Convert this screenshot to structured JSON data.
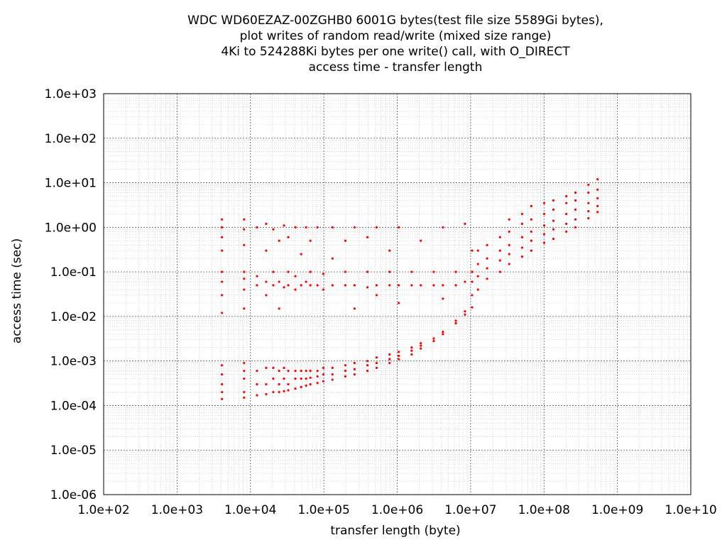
{
  "chart_data": {
    "type": "scatter",
    "title_lines": [
      "WDC WD60EZAZ-00ZGHB0 6001G bytes(test file size 5589Gi bytes),",
      "plot writes of random read/write (mixed size range)",
      "4Ki to 524288Ki bytes per one write() call, with O_DIRECT",
      "access time - transfer length"
    ],
    "xlabel": "transfer length (byte)",
    "ylabel": "access time (sec)",
    "xscale": "log",
    "yscale": "log",
    "xlim": [
      100,
      10000000000
    ],
    "ylim": [
      1e-06,
      1000
    ],
    "grid": true,
    "x_ticks": [
      {
        "value": 100,
        "label": "1.0e+02"
      },
      {
        "value": 1000,
        "label": "1.0e+03"
      },
      {
        "value": 10000,
        "label": "1.0e+04"
      },
      {
        "value": 100000,
        "label": "1.0e+05"
      },
      {
        "value": 1000000,
        "label": "1.0e+06"
      },
      {
        "value": 10000000,
        "label": "1.0e+07"
      },
      {
        "value": 100000000,
        "label": "1.0e+08"
      },
      {
        "value": 1000000000,
        "label": "1.0e+09"
      },
      {
        "value": 10000000000,
        "label": "1.0e+10"
      }
    ],
    "y_ticks": [
      {
        "value": 1e-06,
        "label": "1.0e-06"
      },
      {
        "value": 1e-05,
        "label": "1.0e-05"
      },
      {
        "value": 0.0001,
        "label": "1.0e-04"
      },
      {
        "value": 0.001,
        "label": "1.0e-03"
      },
      {
        "value": 0.01,
        "label": "1.0e-02"
      },
      {
        "value": 0.1,
        "label": "1.0e-01"
      },
      {
        "value": 1,
        "label": "1.0e+00"
      },
      {
        "value": 10,
        "label": "1.0e+01"
      },
      {
        "value": 100,
        "label": "1.0e+02"
      },
      {
        "value": 1000,
        "label": "1.0e+03"
      }
    ],
    "series": [
      {
        "color": "#ff0000",
        "points": [
          [
            4096,
            0.00014
          ],
          [
            4096,
            0.0002
          ],
          [
            4096,
            0.0003
          ],
          [
            4096,
            0.0005
          ],
          [
            4096,
            0.0008
          ],
          [
            4096,
            0.012
          ],
          [
            4096,
            0.03
          ],
          [
            4096,
            0.06
          ],
          [
            4096,
            0.1
          ],
          [
            4096,
            0.3
          ],
          [
            4096,
            0.6
          ],
          [
            4096,
            1.0
          ],
          [
            4096,
            1.5
          ],
          [
            8192,
            0.00015
          ],
          [
            8192,
            0.0002
          ],
          [
            8192,
            0.0004
          ],
          [
            8192,
            0.0006
          ],
          [
            8192,
            0.0009
          ],
          [
            8192,
            0.015
          ],
          [
            8192,
            0.04
          ],
          [
            8192,
            0.07
          ],
          [
            8192,
            0.1
          ],
          [
            8192,
            0.4
          ],
          [
            8192,
            0.9
          ],
          [
            8192,
            1.5
          ],
          [
            12288,
            0.00017
          ],
          [
            12288,
            0.0003
          ],
          [
            12288,
            0.0006
          ],
          [
            12288,
            0.05
          ],
          [
            12288,
            0.08
          ],
          [
            12288,
            1.0
          ],
          [
            16384,
            0.00018
          ],
          [
            16384,
            0.0003
          ],
          [
            16384,
            0.0007
          ],
          [
            16384,
            0.03
          ],
          [
            16384,
            0.06
          ],
          [
            16384,
            0.3
          ],
          [
            16384,
            1.2
          ],
          [
            20480,
            0.0002
          ],
          [
            20480,
            0.0004
          ],
          [
            20480,
            0.0007
          ],
          [
            20480,
            0.05
          ],
          [
            20480,
            0.1
          ],
          [
            20480,
            0.9
          ],
          [
            24576,
            0.0002
          ],
          [
            24576,
            0.0003
          ],
          [
            24576,
            0.0006
          ],
          [
            24576,
            0.015
          ],
          [
            24576,
            0.06
          ],
          [
            24576,
            0.5
          ],
          [
            28672,
            0.00021
          ],
          [
            28672,
            0.0004
          ],
          [
            28672,
            0.0007
          ],
          [
            28672,
            0.045
          ],
          [
            28672,
            1.1
          ],
          [
            32768,
            0.00022
          ],
          [
            32768,
            0.0003
          ],
          [
            32768,
            0.0006
          ],
          [
            32768,
            0.05
          ],
          [
            32768,
            0.1
          ],
          [
            32768,
            0.6
          ],
          [
            40960,
            0.00024
          ],
          [
            40960,
            0.0004
          ],
          [
            40960,
            0.0006
          ],
          [
            40960,
            0.04
          ],
          [
            40960,
            0.08
          ],
          [
            40960,
            1.0
          ],
          [
            49152,
            0.00026
          ],
          [
            49152,
            0.0004
          ],
          [
            49152,
            0.0006
          ],
          [
            49152,
            0.05
          ],
          [
            49152,
            0.25
          ],
          [
            57344,
            0.00028
          ],
          [
            57344,
            0.0004
          ],
          [
            57344,
            0.0006
          ],
          [
            57344,
            0.06
          ],
          [
            57344,
            1.0
          ],
          [
            65536,
            0.0003
          ],
          [
            65536,
            0.00042
          ],
          [
            65536,
            0.0006
          ],
          [
            65536,
            0.05
          ],
          [
            65536,
            0.1
          ],
          [
            65536,
            0.5
          ],
          [
            81920,
            0.00032
          ],
          [
            81920,
            0.00045
          ],
          [
            81920,
            0.0006
          ],
          [
            81920,
            0.05
          ],
          [
            81920,
            1.0
          ],
          [
            98304,
            0.00035
          ],
          [
            98304,
            0.0005
          ],
          [
            98304,
            0.0007
          ],
          [
            98304,
            0.04
          ],
          [
            98304,
            0.09
          ],
          [
            131072,
            0.00038
          ],
          [
            131072,
            0.0005
          ],
          [
            131072,
            0.0007
          ],
          [
            131072,
            0.05
          ],
          [
            131072,
            0.2
          ],
          [
            131072,
            1.0
          ],
          [
            196608,
            0.00045
          ],
          [
            196608,
            0.0006
          ],
          [
            196608,
            0.0008
          ],
          [
            196608,
            0.05
          ],
          [
            196608,
            0.1
          ],
          [
            196608,
            0.5
          ],
          [
            262144,
            0.0005
          ],
          [
            262144,
            0.00065
          ],
          [
            262144,
            0.0009
          ],
          [
            262144,
            0.05
          ],
          [
            262144,
            0.015
          ],
          [
            262144,
            1.0
          ],
          [
            393216,
            0.0006
          ],
          [
            393216,
            0.0008
          ],
          [
            393216,
            0.001
          ],
          [
            393216,
            0.045
          ],
          [
            393216,
            0.1
          ],
          [
            393216,
            0.6
          ],
          [
            524288,
            0.0007
          ],
          [
            524288,
            0.0009
          ],
          [
            524288,
            0.0012
          ],
          [
            524288,
            0.05
          ],
          [
            524288,
            0.03
          ],
          [
            524288,
            1.0
          ],
          [
            786432,
            0.0009
          ],
          [
            786432,
            0.0011
          ],
          [
            786432,
            0.0014
          ],
          [
            786432,
            0.05
          ],
          [
            786432,
            0.1
          ],
          [
            786432,
            0.3
          ],
          [
            1048576,
            0.0011
          ],
          [
            1048576,
            0.0013
          ],
          [
            1048576,
            0.0016
          ],
          [
            1048576,
            0.05
          ],
          [
            1048576,
            0.02
          ],
          [
            1048576,
            1.0
          ],
          [
            1572864,
            0.0014
          ],
          [
            1572864,
            0.0017
          ],
          [
            1572864,
            0.002
          ],
          [
            1572864,
            0.05
          ],
          [
            1572864,
            0.1
          ],
          [
            2097152,
            0.0019
          ],
          [
            2097152,
            0.0022
          ],
          [
            2097152,
            0.0025
          ],
          [
            2097152,
            0.05
          ],
          [
            2097152,
            0.5
          ],
          [
            3145728,
            0.0028
          ],
          [
            3145728,
            0.0032
          ],
          [
            3145728,
            0.05
          ],
          [
            3145728,
            0.1
          ],
          [
            4194304,
            0.004
          ],
          [
            4194304,
            0.0045
          ],
          [
            4194304,
            0.05
          ],
          [
            4194304,
            0.025
          ],
          [
            4194304,
            1.0
          ],
          [
            6291456,
            0.007
          ],
          [
            6291456,
            0.008
          ],
          [
            6291456,
            0.05
          ],
          [
            6291456,
            0.1
          ],
          [
            8388608,
            0.011
          ],
          [
            8388608,
            0.013
          ],
          [
            8388608,
            0.06
          ],
          [
            8388608,
            1.2
          ],
          [
            10485760,
            0.016
          ],
          [
            10485760,
            0.03
          ],
          [
            10485760,
            0.06
          ],
          [
            10485760,
            0.1
          ],
          [
            10485760,
            0.3
          ],
          [
            12582912,
            0.04
          ],
          [
            12582912,
            0.08
          ],
          [
            12582912,
            0.15
          ],
          [
            12582912,
            0.3
          ],
          [
            16777216,
            0.07
          ],
          [
            16777216,
            0.12
          ],
          [
            16777216,
            0.2
          ],
          [
            16777216,
            0.4
          ],
          [
            25165824,
            0.1
          ],
          [
            25165824,
            0.18
          ],
          [
            25165824,
            0.3
          ],
          [
            25165824,
            0.6
          ],
          [
            33554432,
            0.15
          ],
          [
            33554432,
            0.25
          ],
          [
            33554432,
            0.4
          ],
          [
            33554432,
            0.8
          ],
          [
            33554432,
            1.5
          ],
          [
            50331648,
            0.22
          ],
          [
            50331648,
            0.35
          ],
          [
            50331648,
            0.6
          ],
          [
            50331648,
            1.2
          ],
          [
            50331648,
            2.0
          ],
          [
            67108864,
            0.3
          ],
          [
            67108864,
            0.5
          ],
          [
            67108864,
            0.8
          ],
          [
            67108864,
            1.5
          ],
          [
            67108864,
            3.0
          ],
          [
            100663296,
            0.45
          ],
          [
            100663296,
            0.7
          ],
          [
            100663296,
            1.1
          ],
          [
            100663296,
            2.0
          ],
          [
            100663296,
            3.5
          ],
          [
            134217728,
            0.55
          ],
          [
            134217728,
            0.9
          ],
          [
            134217728,
            1.4
          ],
          [
            134217728,
            2.5
          ],
          [
            134217728,
            4.0
          ],
          [
            201326592,
            0.8
          ],
          [
            201326592,
            1.2
          ],
          [
            201326592,
            2.0
          ],
          [
            201326592,
            3.5
          ],
          [
            201326592,
            5.0
          ],
          [
            268435456,
            1.0
          ],
          [
            268435456,
            1.5
          ],
          [
            268435456,
            2.5
          ],
          [
            268435456,
            4.0
          ],
          [
            268435456,
            6.0
          ],
          [
            402653184,
            1.6
          ],
          [
            402653184,
            2.3
          ],
          [
            402653184,
            3.5
          ],
          [
            402653184,
            6.0
          ],
          [
            402653184,
            9.0
          ],
          [
            536870912,
            2.2
          ],
          [
            536870912,
            3.0
          ],
          [
            536870912,
            4.5
          ],
          [
            536870912,
            7.0
          ],
          [
            536870912,
            12.0
          ]
        ]
      }
    ]
  }
}
